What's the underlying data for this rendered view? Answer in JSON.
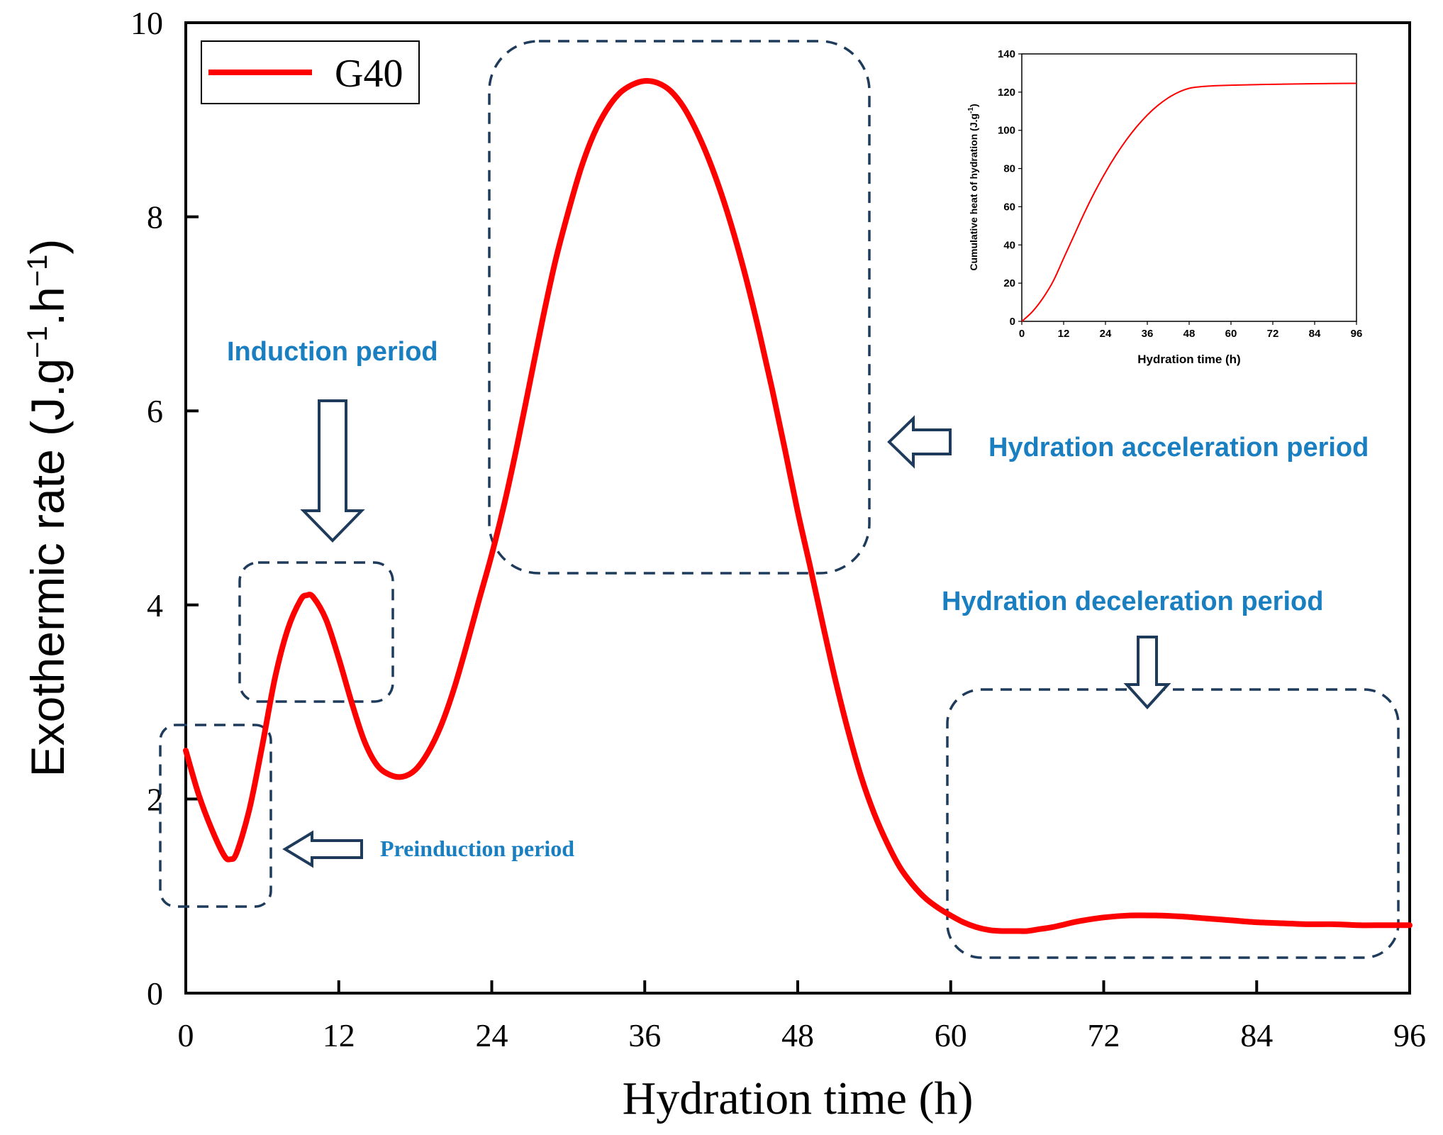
{
  "chart_data": {
    "type": "line",
    "xlabel": "Hydration time (h)",
    "ylabel": "Exothermic rate (J.g",
    "ylabel_units": {
      "exp1": "−1",
      "mid": ".h",
      "exp2": "−1",
      "close": ")"
    },
    "xlim": [
      0,
      96
    ],
    "ylim": [
      0,
      10
    ],
    "xticks": [
      0,
      12,
      24,
      36,
      48,
      60,
      72,
      84,
      96
    ],
    "yticks": [
      0,
      2,
      4,
      6,
      8,
      10
    ],
    "legend": {
      "position": "top-left",
      "label": "G40"
    },
    "series": [
      {
        "name": "G40",
        "color": "#ff0000",
        "x": [
          0,
          1,
          2,
          3,
          3.5,
          4,
          5,
          6,
          7,
          8,
          9,
          9.5,
          10,
          11,
          12,
          13,
          14,
          15,
          16,
          17,
          18,
          19,
          20,
          21,
          22,
          23,
          24,
          25,
          26,
          27,
          28,
          29,
          30,
          31,
          32,
          33,
          34,
          35,
          36,
          37,
          38,
          39,
          40,
          41,
          42,
          43,
          44,
          45,
          46,
          47,
          48,
          49,
          50,
          51,
          52,
          53,
          54,
          55,
          56,
          57,
          58,
          59,
          60,
          61,
          62,
          63,
          64,
          65,
          66,
          67,
          68,
          69,
          70,
          72,
          74,
          76,
          78,
          80,
          82,
          84,
          86,
          88,
          90,
          92,
          94,
          96
        ],
        "y": [
          2.5,
          2.05,
          1.7,
          1.42,
          1.38,
          1.45,
          1.9,
          2.55,
          3.25,
          3.75,
          4.05,
          4.1,
          4.08,
          3.85,
          3.45,
          3.0,
          2.6,
          2.35,
          2.25,
          2.23,
          2.3,
          2.48,
          2.75,
          3.12,
          3.57,
          4.05,
          4.52,
          5.05,
          5.65,
          6.3,
          6.95,
          7.55,
          8.05,
          8.5,
          8.85,
          9.1,
          9.27,
          9.36,
          9.4,
          9.38,
          9.3,
          9.14,
          8.9,
          8.6,
          8.24,
          7.82,
          7.34,
          6.8,
          6.22,
          5.6,
          4.96,
          4.38,
          3.78,
          3.2,
          2.68,
          2.22,
          1.85,
          1.55,
          1.3,
          1.12,
          0.98,
          0.88,
          0.8,
          0.73,
          0.68,
          0.65,
          0.64,
          0.64,
          0.64,
          0.66,
          0.68,
          0.71,
          0.74,
          0.78,
          0.8,
          0.8,
          0.79,
          0.77,
          0.75,
          0.73,
          0.72,
          0.71,
          0.71,
          0.7,
          0.7,
          0.7
        ]
      }
    ],
    "annotations": [
      {
        "text": "Induction period"
      },
      {
        "text": "Hydration acceleration period"
      },
      {
        "text": "Hydration deceleration period"
      },
      {
        "text": "Preinduction period"
      }
    ],
    "inset": {
      "type": "line",
      "xlabel": "Hydration time (h)",
      "ylabel": "Cumulative heat of hydration (J.g",
      "ylabel_sup": "-1",
      "ylabel_close": ")",
      "xlim": [
        0,
        96
      ],
      "ylim": [
        0,
        140
      ],
      "xticks": [
        0,
        12,
        24,
        36,
        48,
        60,
        72,
        84,
        96
      ],
      "yticks": [
        0,
        20,
        40,
        60,
        80,
        100,
        120,
        140
      ],
      "series": [
        {
          "name": "cumulative",
          "color": "#ff0000",
          "x": [
            0,
            3,
            6,
            9,
            12,
            15,
            18,
            21,
            24,
            27,
            30,
            33,
            36,
            39,
            42,
            45,
            48,
            51,
            54,
            60,
            72,
            84,
            96
          ],
          "y": [
            0,
            5,
            12,
            21,
            33,
            45,
            57,
            68,
            78,
            87,
            95,
            102,
            108,
            113,
            117,
            120,
            122,
            122.8,
            123.2,
            123.6,
            124.1,
            124.4,
            124.6
          ]
        }
      ]
    }
  }
}
